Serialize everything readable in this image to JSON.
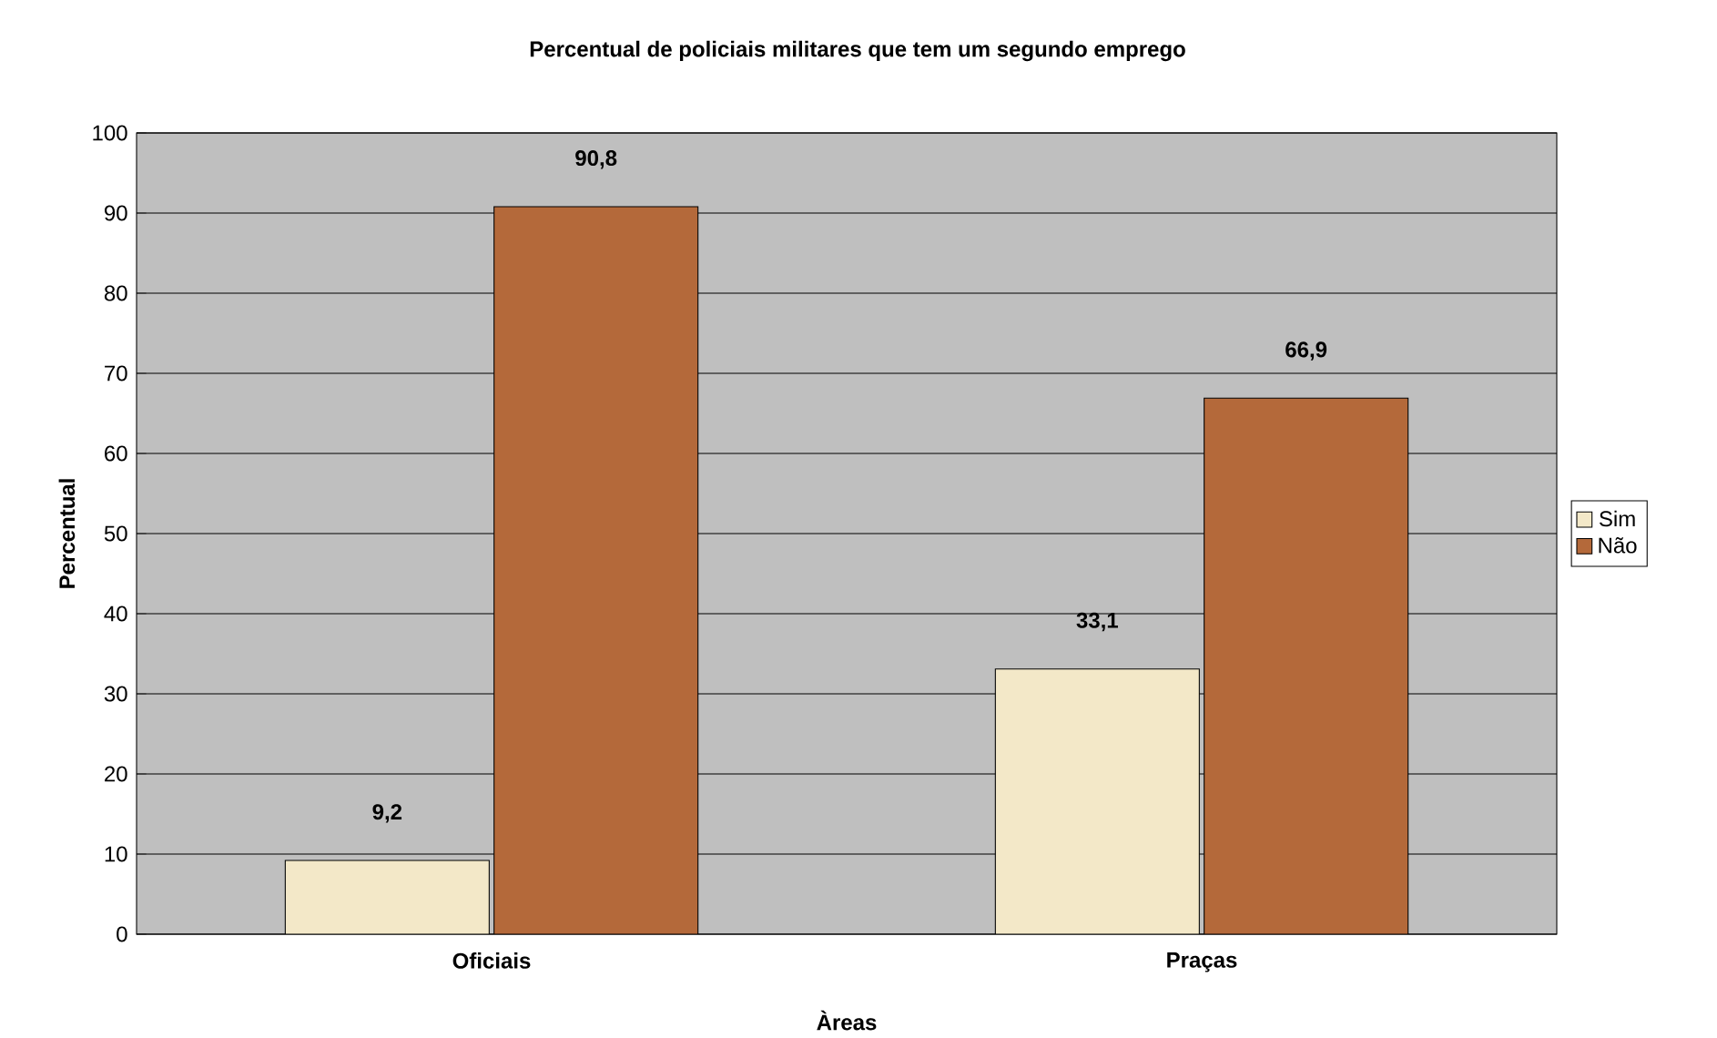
{
  "chart_data": {
    "type": "bar",
    "title": "Percentual de policiais militares que tem um segundo emprego",
    "xlabel": "Àreas",
    "ylabel": "Percentual",
    "categories": [
      "Oficiais",
      "Praças"
    ],
    "series": [
      {
        "name": "Sim",
        "color": "#f3e8c8",
        "values": [
          9.2,
          33.1
        ],
        "value_labels": [
          "9,2",
          "33,1"
        ]
      },
      {
        "name": "Não",
        "color": "#b4693a",
        "values": [
          90.8,
          66.9
        ],
        "value_labels": [
          "90,8",
          "66,9"
        ]
      }
    ],
    "ylim": [
      0,
      100
    ],
    "yticks": [
      0,
      10,
      20,
      30,
      40,
      50,
      60,
      70,
      80,
      90,
      100
    ],
    "grid": "y",
    "legend": "right"
  }
}
